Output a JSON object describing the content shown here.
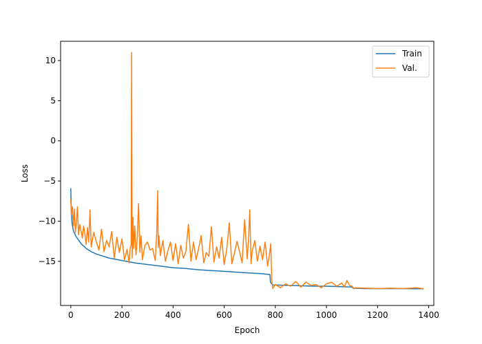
{
  "chart_data": {
    "type": "line",
    "title": "",
    "xlabel": "Epoch",
    "ylabel": "Loss",
    "xlim": [
      -40,
      1420
    ],
    "ylim": [
      -20.5,
      12.4
    ],
    "xticks": [
      0,
      200,
      400,
      600,
      800,
      1000,
      1200,
      1400
    ],
    "yticks": [
      -15,
      -10,
      -5,
      0,
      5,
      10
    ],
    "xtick_labels": [
      "0",
      "200",
      "400",
      "600",
      "800",
      "1000",
      "1200",
      "1400"
    ],
    "ytick_labels": [
      "−15",
      "−10",
      "−5",
      "0",
      "5",
      "10"
    ],
    "grid": false,
    "legend_position": "top-right",
    "series": [
      {
        "name": "Train",
        "color": "#1f77b4",
        "x": [
          0,
          2,
          5,
          10,
          20,
          40,
          60,
          80,
          100,
          150,
          200,
          250,
          300,
          350,
          400,
          450,
          500,
          550,
          600,
          650,
          700,
          750,
          779,
          781,
          790,
          850,
          900,
          950,
          1000,
          1050,
          1100,
          1105,
          1150,
          1200,
          1250,
          1300,
          1350,
          1380
        ],
        "y": [
          -5.9,
          -8.8,
          -10.3,
          -11.2,
          -11.9,
          -12.8,
          -13.4,
          -13.8,
          -14.1,
          -14.6,
          -14.9,
          -15.2,
          -15.4,
          -15.6,
          -15.8,
          -15.9,
          -16.05,
          -16.15,
          -16.25,
          -16.35,
          -16.45,
          -16.55,
          -16.65,
          -17.6,
          -17.95,
          -18.0,
          -18.05,
          -18.1,
          -18.1,
          -18.15,
          -18.2,
          -18.35,
          -18.4,
          -18.4,
          -18.4,
          -18.4,
          -18.42,
          -18.43
        ]
      },
      {
        "name": "Val.",
        "color": "#ff7f0e",
        "x": [
          0,
          2,
          6,
          10,
          14,
          18,
          22,
          26,
          30,
          35,
          40,
          45,
          50,
          55,
          60,
          65,
          70,
          75,
          80,
          90,
          100,
          110,
          120,
          130,
          140,
          150,
          160,
          170,
          180,
          190,
          200,
          210,
          220,
          228,
          232,
          236,
          238,
          240,
          243,
          246,
          250,
          255,
          260,
          265,
          270,
          275,
          280,
          290,
          300,
          310,
          320,
          330,
          336,
          340,
          342,
          345,
          350,
          360,
          370,
          380,
          390,
          400,
          410,
          420,
          430,
          440,
          450,
          460,
          470,
          480,
          490,
          500,
          510,
          520,
          530,
          540,
          550,
          560,
          570,
          580,
          590,
          600,
          610,
          620,
          630,
          640,
          650,
          660,
          670,
          680,
          690,
          695,
          700,
          705,
          710,
          720,
          730,
          740,
          750,
          760,
          770,
          778,
          782,
          786,
          790,
          800,
          820,
          840,
          860,
          880,
          900,
          920,
          940,
          960,
          980,
          1000,
          1020,
          1040,
          1060,
          1070,
          1080,
          1090,
          1100,
          1108,
          1115,
          1150,
          1200,
          1250,
          1300,
          1350,
          1380
        ],
        "y": [
          -7.3,
          -9.2,
          -8.2,
          -10.6,
          -8.5,
          -11.4,
          -10.1,
          -8.2,
          -11.7,
          -10.4,
          -11.2,
          -12.1,
          -10.6,
          -11.6,
          -12.9,
          -10.8,
          -12.6,
          -8.6,
          -13.2,
          -11.4,
          -12.6,
          -13.6,
          -11.0,
          -13.8,
          -12.4,
          -13.2,
          -11.3,
          -14.6,
          -12.0,
          -13.9,
          -12.2,
          -14.8,
          -13.5,
          -15.2,
          -13.4,
          -12.9,
          11.0,
          -14.6,
          -9.5,
          -13.4,
          -10.6,
          -14.2,
          -12.1,
          -7.8,
          -13.9,
          -11.8,
          -14.8,
          -13.0,
          -12.6,
          -13.6,
          -13.4,
          -14.9,
          -11.5,
          -6.2,
          -13.3,
          -11.8,
          -14.3,
          -12.4,
          -15.0,
          -13.7,
          -12.6,
          -14.9,
          -12.8,
          -15.3,
          -13.0,
          -14.6,
          -13.8,
          -10.4,
          -15.0,
          -12.6,
          -14.8,
          -13.4,
          -11.8,
          -15.2,
          -13.9,
          -14.4,
          -10.7,
          -15.1,
          -13.2,
          -14.6,
          -12.0,
          -15.4,
          -13.5,
          -10.2,
          -15.3,
          -14.0,
          -12.5,
          -13.8,
          -15.2,
          -9.8,
          -14.7,
          -12.3,
          -8.6,
          -15.3,
          -13.7,
          -12.4,
          -15.0,
          -13.1,
          -14.8,
          -12.6,
          -15.6,
          -13.9,
          -12.8,
          -17.2,
          -18.4,
          -17.9,
          -18.3,
          -17.8,
          -18.1,
          -17.5,
          -18.2,
          -17.6,
          -18.0,
          -17.9,
          -18.3,
          -17.8,
          -17.6,
          -18.1,
          -17.7,
          -18.2,
          -17.4,
          -18.0,
          -18.1,
          -18.4,
          -18.3,
          -18.35,
          -18.4,
          -18.35,
          -18.4,
          -18.3,
          -18.4
        ]
      }
    ]
  }
}
